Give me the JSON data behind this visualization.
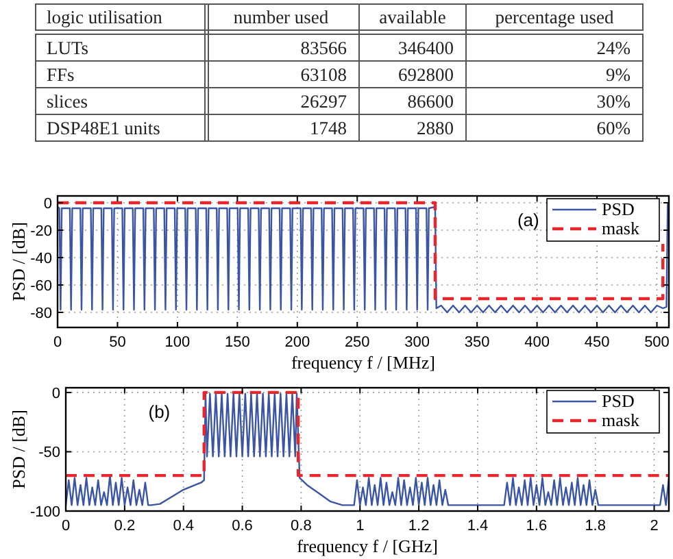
{
  "chart_data": [
    {
      "type": "other",
      "categories": [
        "logic utilisation",
        "number used",
        "available",
        "percentage used"
      ],
      "annotations": [
        "LUTs",
        "83566",
        "346400",
        "24%",
        "FFs",
        "63108",
        "692800",
        "9%",
        "slices",
        "26297",
        "86600",
        "30%",
        "DSP48E1 units",
        "1748",
        "2880",
        "60%"
      ]
    },
    {
      "type": "line",
      "xlabel": "frequency f / [MHz]",
      "ylabel": "PSD / [dB]",
      "xlim": [
        0,
        510
      ],
      "ylim": [
        -91,
        5
      ],
      "xticks": [
        0,
        50,
        100,
        150,
        200,
        250,
        300,
        350,
        400,
        450,
        500
      ],
      "yticks": [
        -80,
        -60,
        -40,
        -20,
        0
      ],
      "grid": true,
      "legend": "top right",
      "annotations": [
        "(a)"
      ],
      "series": [
        {
          "name": "PSD",
          "color": "#3a55a4",
          "line_style": "solid",
          "x": [
            0,
            1.5,
            2.5,
            3.5,
            10.25,
            11.25,
            12.25,
            19,
            20,
            21,
            27.75,
            28.75,
            29.75,
            36.5,
            37.5,
            38.5,
            45.25,
            46.25,
            47.25,
            54,
            55,
            56,
            62.75,
            63.75,
            64.75,
            71.5,
            72.5,
            73.5,
            80.25,
            81.25,
            82.25,
            89,
            90,
            91,
            97.75,
            98.75,
            99.75,
            106.5,
            107.5,
            108.5,
            115.25,
            116.25,
            117.25,
            124,
            125,
            126,
            132.75,
            133.75,
            134.75,
            141.5,
            142.5,
            143.5,
            150.25,
            151.25,
            152.25,
            159,
            160,
            161,
            167.75,
            168.75,
            169.75,
            176.5,
            177.5,
            178.5,
            185.25,
            186.25,
            187.25,
            194,
            195,
            196,
            202.75,
            203.75,
            204.75,
            211.5,
            212.5,
            213.5,
            220.25,
            221.25,
            222.25,
            229,
            230,
            231,
            237.75,
            238.75,
            239.75,
            246.5,
            247.5,
            248.5,
            255.25,
            256.25,
            257.25,
            264,
            265,
            266,
            272.75,
            273.75,
            274.75,
            281.5,
            282.5,
            283.5,
            290.25,
            291.25,
            292.25,
            299,
            300,
            301,
            307.75,
            308.75,
            309.75,
            315,
            316,
            320,
            325,
            330,
            335,
            340,
            345,
            350,
            355,
            360,
            365,
            370,
            375,
            380,
            385,
            390,
            395,
            400,
            405,
            410,
            415,
            420,
            425,
            430,
            435,
            440,
            445,
            450,
            455,
            460,
            465,
            470,
            475,
            480,
            485,
            490,
            495,
            500,
            505,
            508,
            509,
            510
          ],
          "values": [
            -3,
            -4,
            -78,
            -4,
            -4,
            -78,
            -4,
            -4,
            -78,
            -4,
            -4,
            -78,
            -4,
            -4,
            -78,
            -4,
            -4,
            -78,
            -4,
            -4,
            -78,
            -4,
            -4,
            -78,
            -4,
            -4,
            -78,
            -4,
            -4,
            -78,
            -4,
            -4,
            -78,
            -4,
            -4,
            -78,
            -4,
            -4,
            -78,
            -4,
            -4,
            -78,
            -4,
            -4,
            -78,
            -4,
            -4,
            -78,
            -4,
            -4,
            -78,
            -4,
            -4,
            -78,
            -4,
            -4,
            -78,
            -4,
            -4,
            -78,
            -4,
            -4,
            -78,
            -4,
            -4,
            -78,
            -4,
            -4,
            -78,
            -4,
            -4,
            -78,
            -4,
            -4,
            -78,
            -4,
            -4,
            -78,
            -4,
            -4,
            -78,
            -4,
            -4,
            -78,
            -4,
            -4,
            -78,
            -4,
            -4,
            -78,
            -4,
            -4,
            -78,
            -4,
            -4,
            -78,
            -4,
            -4,
            -78,
            -4,
            -4,
            -78,
            -4,
            -4,
            -78,
            -4,
            -4,
            -78,
            -4,
            -3,
            -77,
            -75,
            -80,
            -75,
            -80,
            -75,
            -80,
            -75,
            -80,
            -75,
            -80,
            -75,
            -80,
            -75,
            -80,
            -75,
            -80,
            -75,
            -80,
            -75,
            -80,
            -75,
            -80,
            -75,
            -80,
            -75,
            -80,
            -75,
            -80,
            -75,
            -80,
            -75,
            -80,
            -75,
            -80,
            -75,
            -80,
            -75,
            -77,
            -76,
            -1,
            -1
          ]
        },
        {
          "name": "mask",
          "color": "#e8262b",
          "line_style": "dashed",
          "x": [
            0,
            315,
            315,
            505,
            505
          ],
          "values": [
            0,
            0,
            -70,
            -70,
            -30
          ]
        }
      ]
    },
    {
      "type": "line",
      "xlabel": "frequency f / [GHz]",
      "ylabel": "PSD / [dB]",
      "xlim": [
        0,
        2.05
      ],
      "ylim": [
        -100,
        4
      ],
      "xticks": [
        0,
        0.2,
        0.4,
        0.6,
        0.8,
        1,
        1.2,
        1.4,
        1.6,
        1.8,
        2
      ],
      "yticks": [
        -100,
        -50,
        0
      ],
      "grid": true,
      "legend": "top right",
      "annotations": [
        "(b)"
      ],
      "series": [
        {
          "name": "PSD",
          "color": "#3a55a4",
          "line_style": "solid",
          "x": [
            0,
            0.01,
            0.02,
            0.03,
            0.04,
            0.05,
            0.06,
            0.07,
            0.08,
            0.09,
            0.1,
            0.11,
            0.12,
            0.13,
            0.14,
            0.15,
            0.16,
            0.17,
            0.18,
            0.19,
            0.2,
            0.21,
            0.22,
            0.23,
            0.24,
            0.25,
            0.26,
            0.27,
            0.28,
            0.29,
            0.32,
            0.36,
            0.4,
            0.44,
            0.46,
            0.47,
            0.475,
            0.48,
            0.49,
            0.5,
            0.51,
            0.52,
            0.53,
            0.54,
            0.55,
            0.56,
            0.57,
            0.58,
            0.59,
            0.6,
            0.61,
            0.62,
            0.63,
            0.64,
            0.65,
            0.66,
            0.67,
            0.68,
            0.69,
            0.7,
            0.71,
            0.72,
            0.73,
            0.74,
            0.75,
            0.76,
            0.77,
            0.78,
            0.785,
            0.795,
            0.82,
            0.86,
            0.9,
            0.94,
            0.98,
            0.99,
            1,
            1.01,
            1.02,
            1.03,
            1.04,
            1.05,
            1.06,
            1.07,
            1.08,
            1.09,
            1.1,
            1.11,
            1.12,
            1.13,
            1.14,
            1.15,
            1.16,
            1.17,
            1.18,
            1.19,
            1.2,
            1.21,
            1.22,
            1.23,
            1.24,
            1.25,
            1.26,
            1.27,
            1.28,
            1.29,
            1.3,
            1.49,
            1.5,
            1.51,
            1.52,
            1.53,
            1.54,
            1.55,
            1.56,
            1.57,
            1.58,
            1.59,
            1.6,
            1.61,
            1.62,
            1.63,
            1.64,
            1.65,
            1.66,
            1.67,
            1.68,
            1.69,
            1.7,
            1.71,
            1.72,
            1.73,
            1.74,
            1.75,
            1.76,
            1.77,
            1.78,
            1.79,
            1.8,
            1.81,
            2.02,
            2.03,
            2.04,
            2.05
          ],
          "values": [
            -95,
            -74,
            -95,
            -72,
            -95,
            -78,
            -95,
            -72,
            -95,
            -80,
            -95,
            -74,
            -95,
            -84,
            -95,
            -70,
            -95,
            -76,
            -95,
            -72,
            -95,
            -80,
            -95,
            -74,
            -95,
            -82,
            -95,
            -76,
            -95,
            -95,
            -94,
            -88,
            -82,
            -78,
            -76,
            -74,
            -1,
            -54,
            -1,
            -54,
            -1,
            -54,
            -1,
            -54,
            -1,
            -54,
            -1,
            -54,
            -1,
            -54,
            -1,
            -54,
            -1,
            -54,
            -1,
            -54,
            -1,
            -54,
            -1,
            -54,
            -1,
            -54,
            -1,
            -54,
            -1,
            -54,
            -1,
            -54,
            -1,
            -72,
            -78,
            -85,
            -92,
            -95,
            -95,
            -74,
            -95,
            -80,
            -95,
            -72,
            -95,
            -78,
            -95,
            -72,
            -95,
            -76,
            -95,
            -84,
            -95,
            -72,
            -95,
            -74,
            -95,
            -80,
            -95,
            -72,
            -95,
            -76,
            -95,
            -72,
            -95,
            -78,
            -95,
            -74,
            -95,
            -82,
            -95,
            -95,
            -76,
            -95,
            -72,
            -95,
            -80,
            -95,
            -74,
            -95,
            -72,
            -95,
            -78,
            -95,
            -72,
            -95,
            -84,
            -95,
            -74,
            -95,
            -72,
            -95,
            -80,
            -95,
            -76,
            -95,
            -72,
            -95,
            -78,
            -95,
            -74,
            -95,
            -82,
            -95,
            -95,
            -78,
            -95,
            -72
          ]
        },
        {
          "name": "mask",
          "color": "#e8262b",
          "line_style": "dashed",
          "x": [
            0,
            0.47,
            0.47,
            0.79,
            0.79,
            2.05
          ],
          "values": [
            -70,
            -70,
            0,
            0,
            -70,
            -70
          ]
        }
      ]
    }
  ]
}
